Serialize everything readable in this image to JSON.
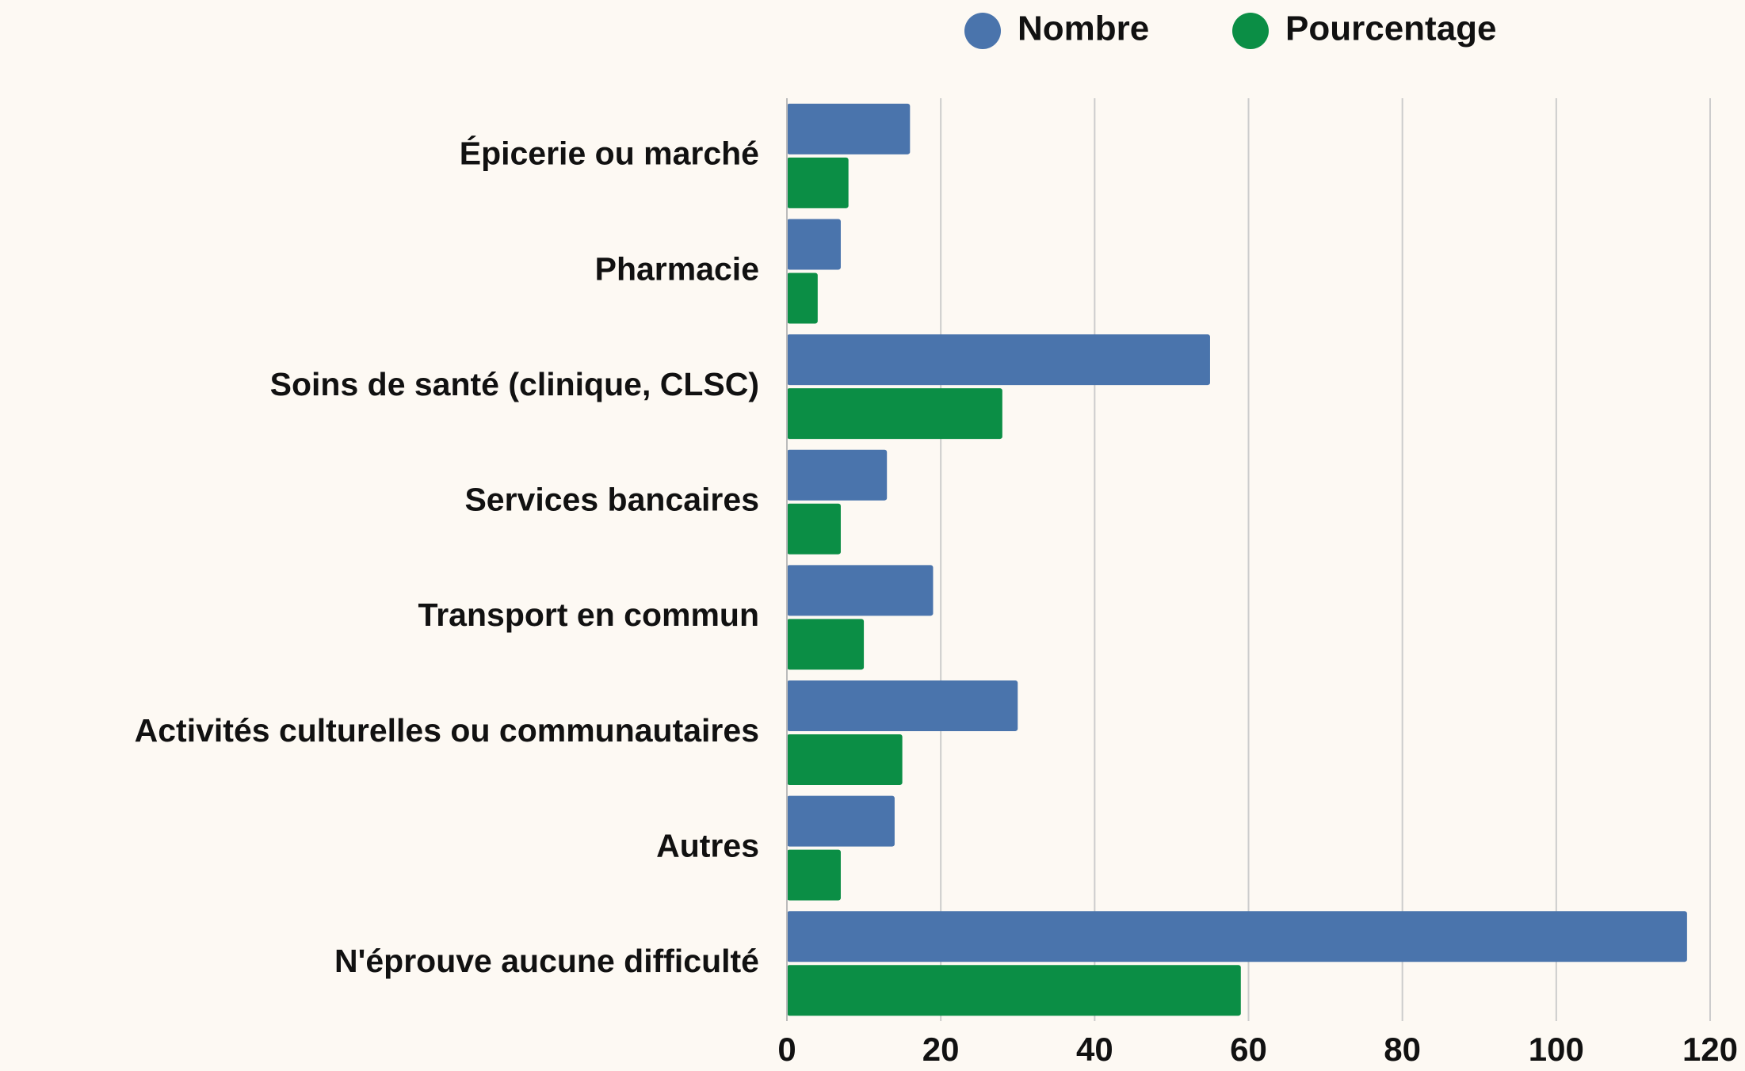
{
  "chart_data": {
    "type": "bar",
    "orientation": "horizontal",
    "categories": [
      "Épicerie ou marché",
      "Pharmacie",
      "Soins de santé (clinique, CLSC)",
      "Services bancaires",
      "Transport en commun",
      "Activités culturelles ou communautaires",
      "Autres",
      "N'éprouve aucune difficulté"
    ],
    "series": [
      {
        "name": "Nombre",
        "color": "#4a74ac",
        "values": [
          16,
          7,
          55,
          13,
          19,
          30,
          14,
          117
        ]
      },
      {
        "name": "Pourcentage",
        "color": "#0b8e45",
        "values": [
          8,
          4,
          28,
          7,
          10,
          15,
          7,
          59
        ]
      }
    ],
    "xlim": [
      0,
      120
    ],
    "xticks": [
      0,
      20,
      40,
      60,
      80,
      100,
      120
    ],
    "grid": true
  }
}
